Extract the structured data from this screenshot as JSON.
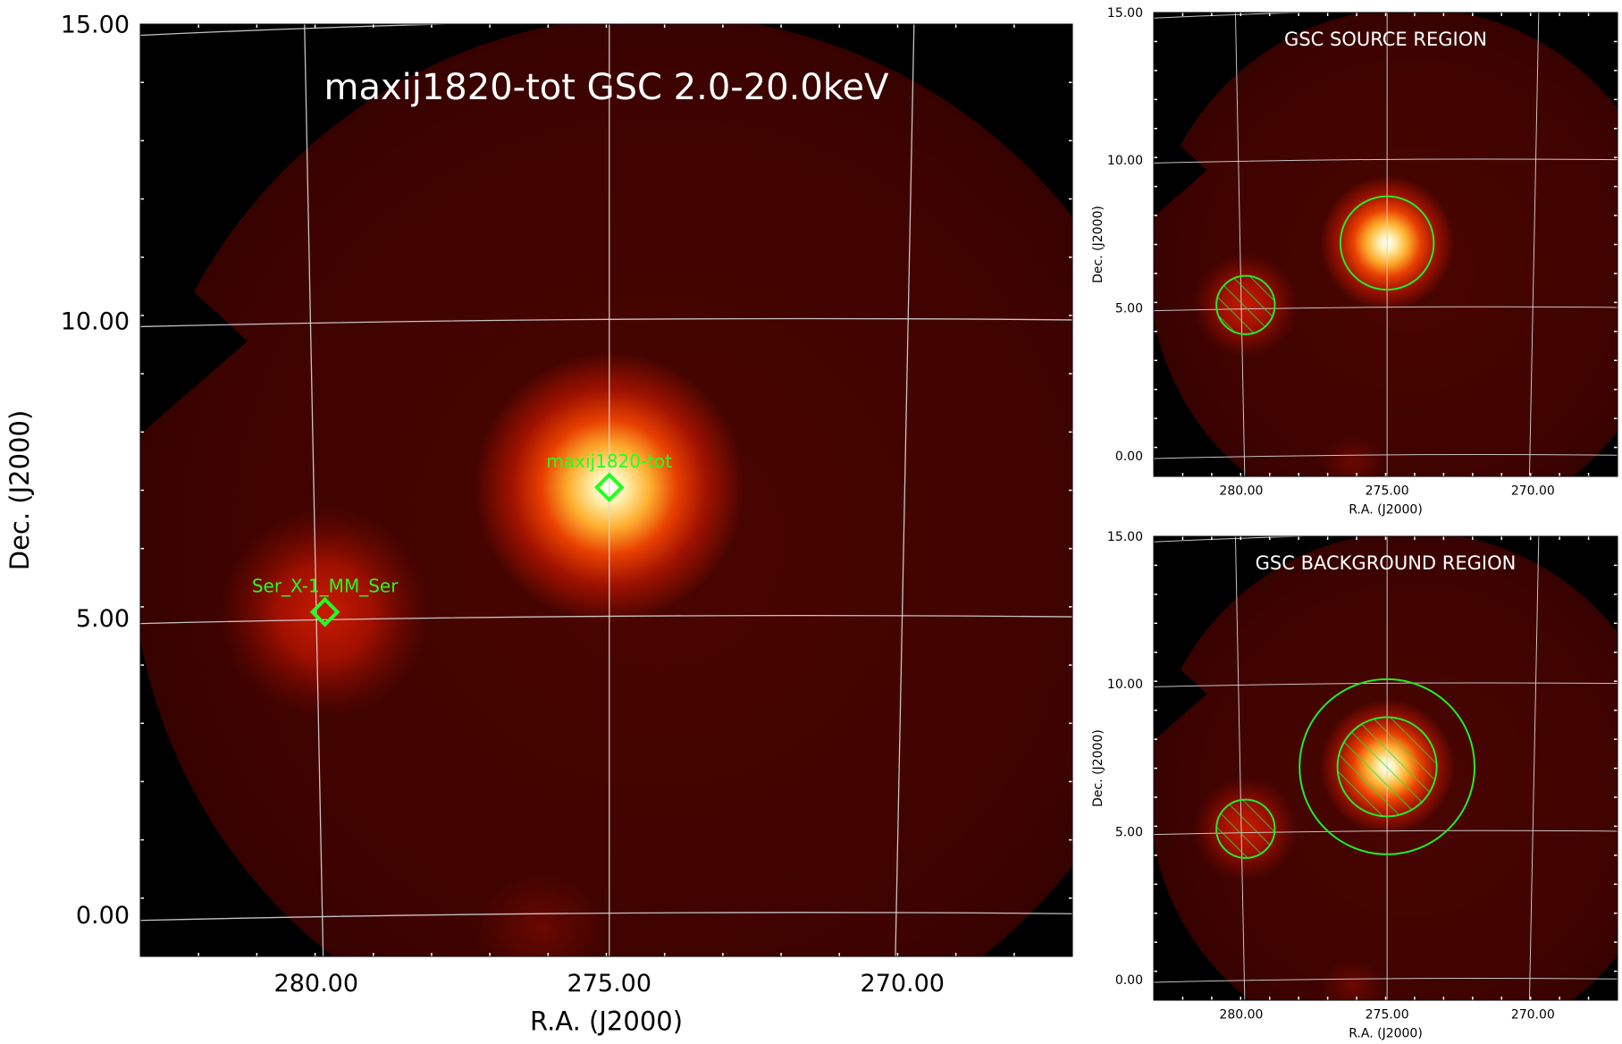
{
  "chart_data": [
    {
      "type": "heatmap",
      "title": "maxij1820-tot GSC 2.0-20.0keV",
      "xlabel": "R.A. (J2000)",
      "ylabel": "Dec. (J2000)",
      "xlim": [
        283.0,
        267.1
      ],
      "ylim": [
        -0.7,
        15.0
      ],
      "x_ticks": [
        "280.00",
        "275.00",
        "270.00"
      ],
      "x_tick_values": [
        280.0,
        275.0,
        270.0
      ],
      "y_ticks": [
        "0.00",
        "5.00",
        "10.00",
        "15.00"
      ],
      "y_tick_values": [
        0.0,
        5.0,
        10.0,
        15.0
      ],
      "grid": true,
      "sources": [
        {
          "name": "maxij1820-tot",
          "ra": 275.0,
          "dec": 7.2,
          "brightness": 1.0
        },
        {
          "name": "Ser_X-1_MM_Ser",
          "ra": 279.85,
          "dec": 5.1,
          "brightness": 0.45
        }
      ],
      "markers": [
        "maxij1820-tot",
        "Ser_X-1_MM_Ser"
      ],
      "colors": {
        "marker": "#22ff22",
        "grid": "#d8d8d8",
        "background": "#000000"
      }
    },
    {
      "type": "heatmap",
      "title": "GSC SOURCE REGION",
      "xlabel": "R.A. (J2000)",
      "ylabel": "Dec. (J2000)",
      "xlim": [
        283.0,
        267.1
      ],
      "ylim": [
        -0.7,
        15.0
      ],
      "x_ticks": [
        "280.00",
        "275.00",
        "270.00"
      ],
      "x_tick_values": [
        280.0,
        275.0,
        270.0
      ],
      "y_ticks": [
        "0.00",
        "5.00",
        "10.00",
        "15.00"
      ],
      "y_tick_values": [
        0.0,
        5.0,
        10.0,
        15.0
      ],
      "grid": true,
      "regions": [
        {
          "kind": "source-circle",
          "ra": 275.0,
          "dec": 7.2,
          "radius_deg": 1.6,
          "hatched": false
        },
        {
          "kind": "excluded-circle",
          "ra": 279.85,
          "dec": 5.1,
          "radius_deg": 1.0,
          "hatched": true
        }
      ]
    },
    {
      "type": "heatmap",
      "title": "GSC BACKGROUND REGION",
      "xlabel": "R.A. (J2000)",
      "ylabel": "Dec. (J2000)",
      "xlim": [
        283.0,
        267.1
      ],
      "ylim": [
        -0.7,
        15.0
      ],
      "x_ticks": [
        "280.00",
        "275.00",
        "270.00"
      ],
      "x_tick_values": [
        280.0,
        275.0,
        270.0
      ],
      "y_ticks": [
        "0.00",
        "5.00",
        "10.00",
        "15.00"
      ],
      "y_tick_values": [
        0.0,
        5.0,
        10.0,
        15.0
      ],
      "grid": true,
      "regions": [
        {
          "kind": "outer-circle",
          "ra": 275.0,
          "dec": 7.2,
          "radius_deg": 3.0,
          "hatched": false
        },
        {
          "kind": "excluded-circle",
          "ra": 275.0,
          "dec": 7.2,
          "radius_deg": 1.7,
          "hatched": true
        },
        {
          "kind": "excluded-circle",
          "ra": 279.85,
          "dec": 5.1,
          "radius_deg": 1.0,
          "hatched": true
        }
      ]
    }
  ]
}
